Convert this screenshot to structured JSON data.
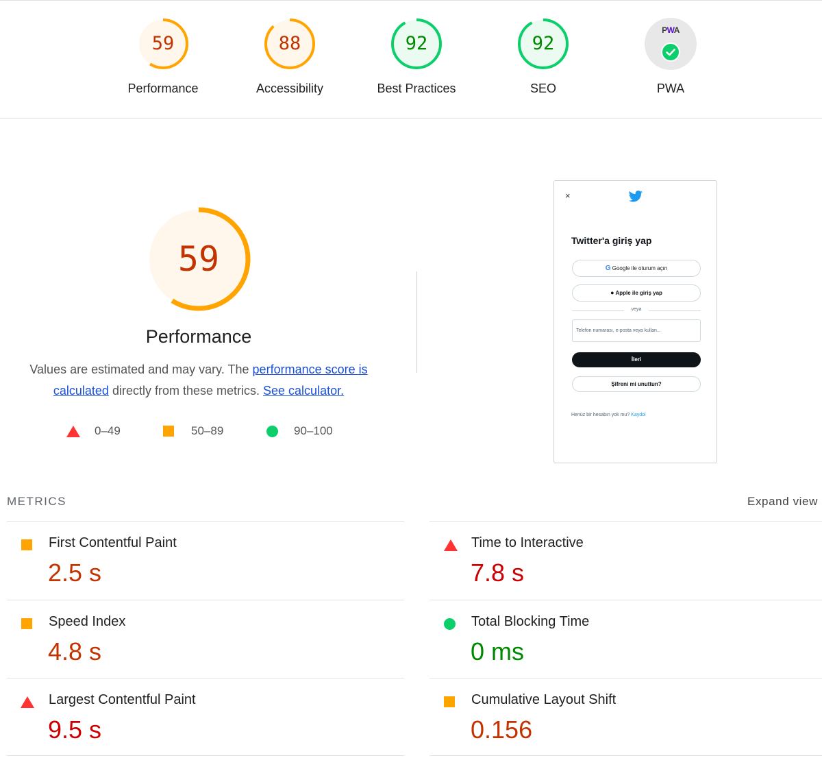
{
  "summary": {
    "gauges": [
      {
        "label": "Performance",
        "score": "59",
        "value": 59,
        "color": "#ffa400",
        "text_color": "#c33300",
        "fill": "#fff6ec"
      },
      {
        "label": "Accessibility",
        "score": "88",
        "value": 88,
        "color": "#ffa400",
        "text_color": "#c33300",
        "fill": "#fff6ec"
      },
      {
        "label": "Best Practices",
        "score": "92",
        "value": 92,
        "color": "#0cce6b",
        "text_color": "#008800",
        "fill": "#ebfbf1"
      },
      {
        "label": "SEO",
        "score": "92",
        "value": 92,
        "color": "#0cce6b",
        "text_color": "#008800",
        "fill": "#ebfbf1"
      }
    ],
    "pwa": {
      "label": "PWA",
      "badge_text_p": "P",
      "badge_text_w": "W",
      "badge_text_a": "A",
      "icon": "check-icon"
    }
  },
  "performance": {
    "score": "59",
    "value": 59,
    "title": "Performance",
    "desc_prefix": "Values are estimated and may vary. The ",
    "desc_link1": "performance score is calculated",
    "desc_middle": " directly from these metrics. ",
    "desc_link2": "See calculator.",
    "legend": [
      {
        "icon": "triangle-icon",
        "range": "0–49",
        "color": "#ff3333"
      },
      {
        "icon": "square-icon",
        "range": "50–89",
        "color": "#ffa400"
      },
      {
        "icon": "circle-icon",
        "range": "90–100",
        "color": "#0cce6b"
      }
    ]
  },
  "screenshot": {
    "close": "×",
    "title": "Twitter'a giriş yap",
    "google_btn": "Google ile oturum açın",
    "apple_btn": "Apple ile giriş yap",
    "or": "veya",
    "input_placeholder": "Telefon numarası, e-posta veya kullan...",
    "next_btn": "İleri",
    "forgot_btn": "Şifreni mi unuttun?",
    "signup_text": "Henüz bir hesabın yok mu? ",
    "signup_link": "Kaydol"
  },
  "metrics": {
    "title": "METRICS",
    "expand": "Expand view",
    "items": [
      {
        "name": "First Contentful Paint",
        "value": "2.5 s",
        "status": "average",
        "color": "#c33300"
      },
      {
        "name": "Time to Interactive",
        "value": "7.8 s",
        "status": "fail",
        "color": "#cc0000"
      },
      {
        "name": "Speed Index",
        "value": "4.8 s",
        "status": "average",
        "color": "#c33300"
      },
      {
        "name": "Total Blocking Time",
        "value": "0 ms",
        "status": "pass",
        "color": "#008800"
      },
      {
        "name": "Largest Contentful Paint",
        "value": "9.5 s",
        "status": "fail",
        "color": "#cc0000"
      },
      {
        "name": "Cumulative Layout Shift",
        "value": "0.156",
        "status": "average",
        "color": "#c33300"
      }
    ]
  }
}
